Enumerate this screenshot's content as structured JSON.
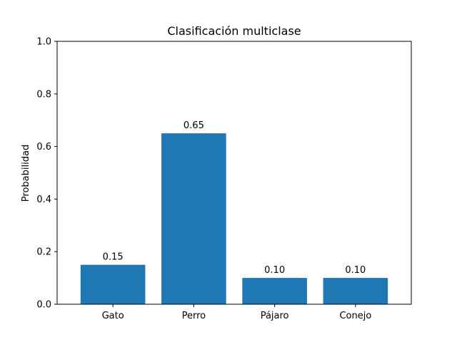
{
  "chart_data": {
    "type": "bar",
    "title": "Clasificación multiclase",
    "xlabel": "",
    "ylabel": "Probabilidad",
    "categories": [
      "Gato",
      "Perro",
      "Pájaro",
      "Conejo"
    ],
    "values": [
      0.15,
      0.65,
      0.1,
      0.1
    ],
    "value_labels": [
      "0.15",
      "0.65",
      "0.10",
      "0.10"
    ],
    "ylim": [
      0,
      1.0
    ],
    "yticks": [
      0.0,
      0.2,
      0.4,
      0.6,
      0.8,
      1.0
    ],
    "ytick_labels": [
      "0.0",
      "0.2",
      "0.4",
      "0.6",
      "0.8",
      "1.0"
    ],
    "grid": false,
    "bar_color": "#1f77b4"
  }
}
